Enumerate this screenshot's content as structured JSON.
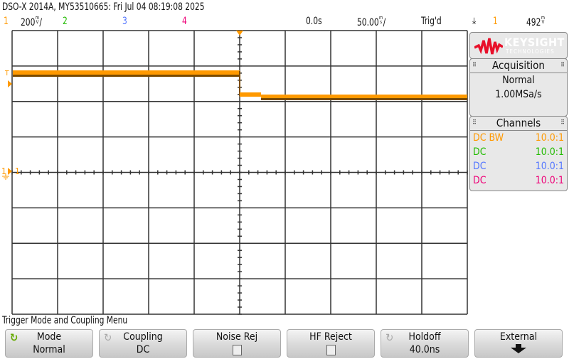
{
  "header": {
    "title": "DSO-X 2014A, MY53510665: Fri Jul 04 08:19:08 2025"
  },
  "status": {
    "ch1_label": "1",
    "ch1_scale": "200",
    "ch1_unit_top": "m",
    "ch1_unit_bottom": "V",
    "ch1_per": "/",
    "ch2_label": "2",
    "ch3_label": "3",
    "ch4_label": "4",
    "time_delay": "0.0s",
    "time_scale": "50.00",
    "time_unit_top": "m",
    "time_unit_bottom": "s",
    "time_per": "/",
    "trigger_status": "Trig'd",
    "trigger_slope_icon": "falling-edge-icon",
    "trigger_slope": "⤓",
    "trigger_source": "1",
    "trigger_level": "492",
    "trigger_level_unit_top": "m",
    "trigger_level_unit_bottom": "V"
  },
  "colors": {
    "ch1": "#ff9900",
    "ch2": "#22bb00",
    "ch3": "#5577ff",
    "ch4": "#ee0077",
    "keysight": "#e8102a"
  },
  "graticule": {
    "markers": {
      "trigger_level": "T",
      "ch1_ground": "1",
      "ch1_label": "1"
    }
  },
  "waveform": {
    "channel": "1",
    "description_levels": {
      "high_div": 2.75,
      "low_div": 2.1
    }
  },
  "logo": {
    "name": "KEYSIGHT",
    "sub": "TECHNOLOGIES"
  },
  "acquisition": {
    "title": "Acquisition",
    "mode": "Normal",
    "sample_rate": "1.00MSa/s"
  },
  "channels": {
    "title": "Channels",
    "rows": [
      {
        "coupling": "DC BW",
        "probe": "10.0:1"
      },
      {
        "coupling": "DC",
        "probe": "10.0:1"
      },
      {
        "coupling": "DC",
        "probe": "10.0:1"
      },
      {
        "coupling": "DC",
        "probe": "10.0:1"
      }
    ]
  },
  "menu": {
    "title": "Trigger Mode and Coupling Menu",
    "softkeys": [
      {
        "label": "Mode",
        "value": "Normal"
      },
      {
        "label": "Coupling",
        "value": "DC"
      },
      {
        "label": "Noise Rej",
        "checked": false
      },
      {
        "label": "HF Reject",
        "checked": false
      },
      {
        "label": "Holdoff",
        "value": "40.0ns"
      },
      {
        "label": "External"
      }
    ]
  }
}
